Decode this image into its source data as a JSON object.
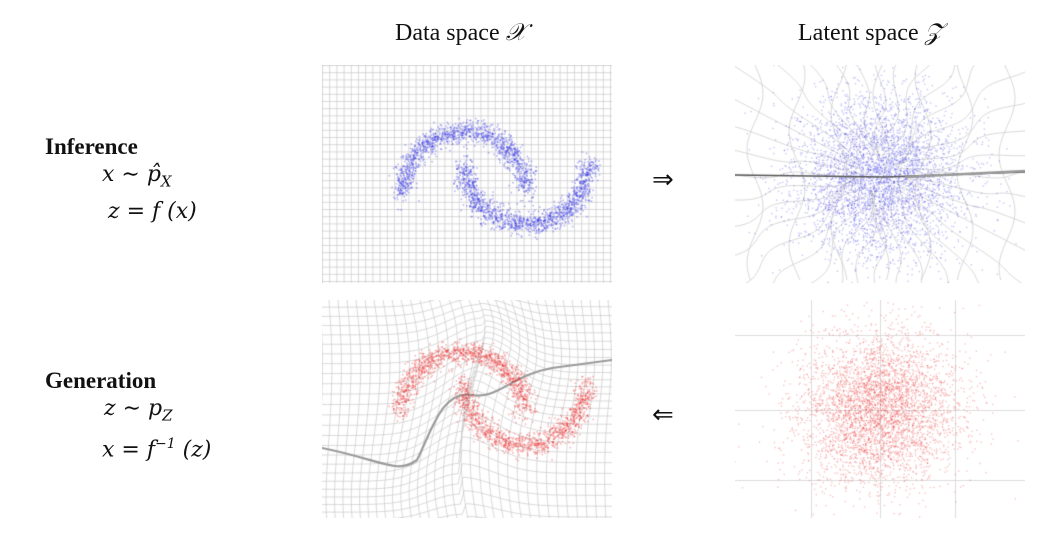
{
  "headers": {
    "data_space": "Data space",
    "data_space_symbol": "𝒳",
    "latent_space": "Latent space",
    "latent_space_symbol": "𝒵"
  },
  "inference": {
    "title": "Inference",
    "eq1_lhs": "x ∼ p̂",
    "eq1_sub": "X",
    "eq2": "z = f (x)"
  },
  "generation": {
    "title": "Generation",
    "eq1_lhs": "z ∼ p",
    "eq1_sub": "Z",
    "eq2_lhs": "x = f",
    "eq2_sup": "−1",
    "eq2_rhs": " (z)"
  },
  "arrows": {
    "forward": "⇒",
    "backward": "⇐"
  },
  "colors": {
    "inference_points": "#2a2ae0",
    "generation_points": "#e82020",
    "grid": "#c8c8c8",
    "grid_dark": "#555555"
  },
  "panels": {
    "top_left": "data-space-regular-grid-blue-two-moons",
    "top_right": "latent-space-warped-grid-blue-gaussian",
    "bottom_left": "data-space-warped-grid-red-two-moons",
    "bottom_right": "latent-space-regular-grid-red-gaussian"
  }
}
